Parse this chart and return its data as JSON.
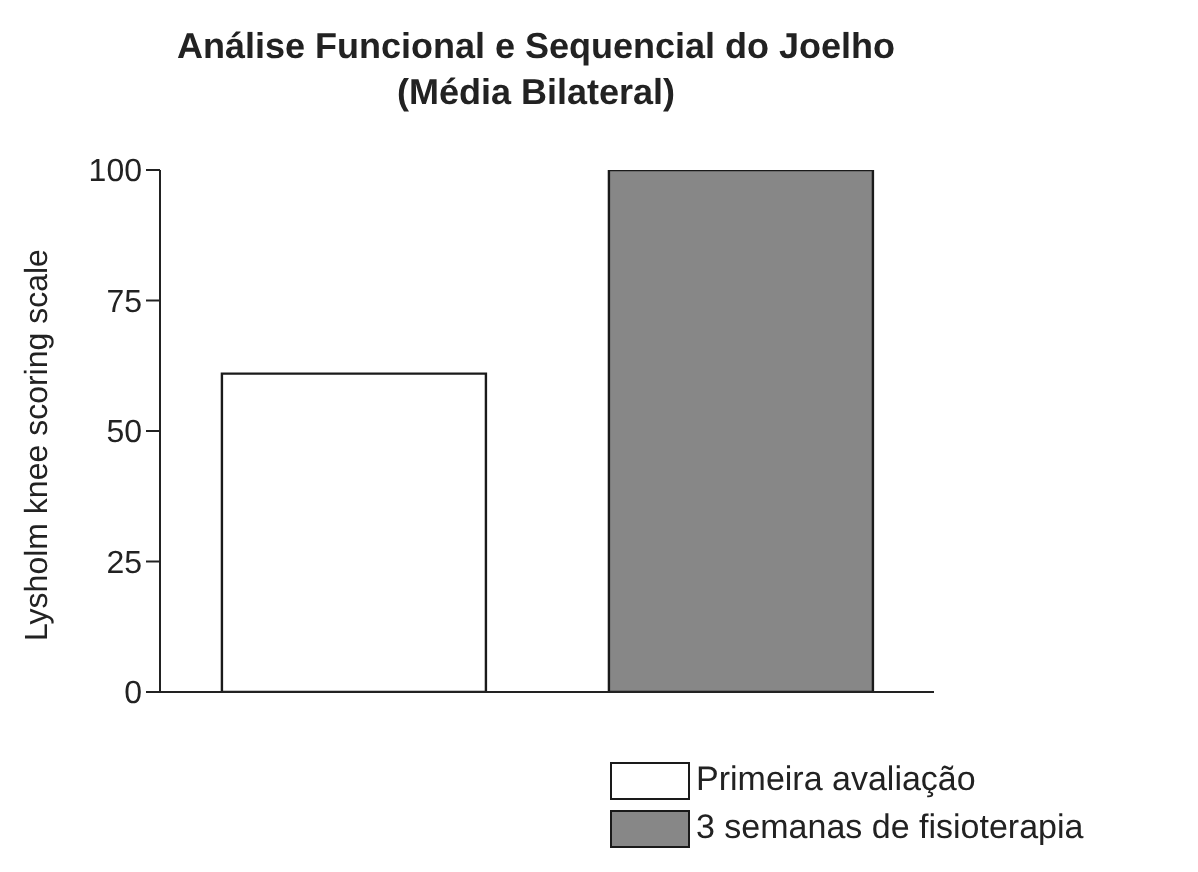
{
  "chart_data": {
    "type": "bar",
    "title": "Análise Funcional e Sequencial do Joelho\n(Média Bilateral)",
    "ylabel": "Lysholm knee scoring scale",
    "categories": [
      null,
      null
    ],
    "series": [
      {
        "name": "Primeira avaliação",
        "color": "#ffffff",
        "values": [
          61,
          null
        ]
      },
      {
        "name": "3 semanas de fisioterapia",
        "color": "#878787",
        "values": [
          null,
          100
        ]
      }
    ],
    "ylim": [
      0,
      100
    ],
    "yticks": [
      0,
      25,
      50,
      75,
      100
    ],
    "tick_labels": "y",
    "grid": false,
    "legend": "bottom right"
  }
}
